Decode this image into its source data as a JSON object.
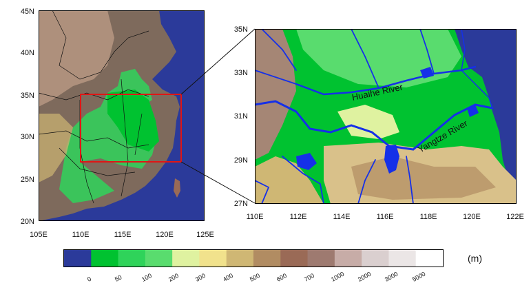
{
  "left_map": {
    "lat_ticks": [
      "45N",
      "40N",
      "35N",
      "30N",
      "25N",
      "20N"
    ],
    "lon_ticks": [
      "105E",
      "110E",
      "115E",
      "120E",
      "125E"
    ]
  },
  "right_map": {
    "lat_ticks": [
      "35N",
      "33N",
      "31N",
      "29N",
      "27N"
    ],
    "lon_ticks": [
      "110E",
      "112E",
      "114E",
      "116E",
      "118E",
      "120E",
      "122E"
    ],
    "labels": {
      "huaihe": "Huaihe River",
      "yangtze": "Yangtze River"
    }
  },
  "colorbar": {
    "unit": "(m)",
    "labels": [
      "0",
      "50",
      "100",
      "200",
      "300",
      "400",
      "500",
      "600",
      "700",
      "1000",
      "2000",
      "3000",
      "5000"
    ],
    "colors": [
      "#2b3a9a",
      "#00c230",
      "#2fd35a",
      "#59dc6e",
      "#dff2a0",
      "#f1e28c",
      "#cfb774",
      "#b18c62",
      "#9a6a56",
      "#9e7a70",
      "#c7aca7",
      "#dacfcf",
      "#ebe6e6",
      "#ffffff"
    ]
  },
  "colors": {
    "sea": "#2b3a9a",
    "river": "#1530e8",
    "box": "#e01515"
  }
}
